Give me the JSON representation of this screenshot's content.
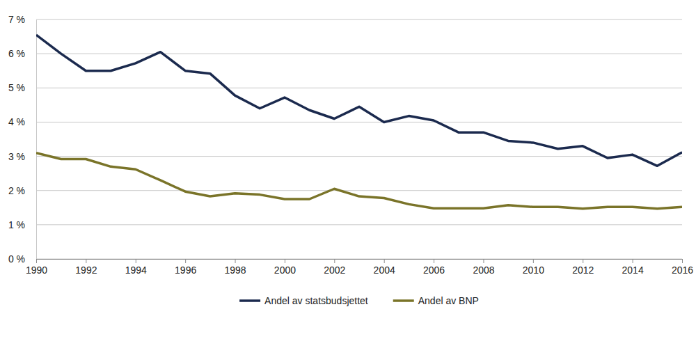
{
  "chart_data": {
    "type": "line",
    "x": [
      1990,
      1991,
      1992,
      1993,
      1994,
      1995,
      1996,
      1997,
      1998,
      1999,
      2000,
      2001,
      2002,
      2003,
      2004,
      2005,
      2006,
      2007,
      2008,
      2009,
      2010,
      2011,
      2012,
      2013,
      2014,
      2015,
      2016
    ],
    "series": [
      {
        "name": "Andel av statsbudsjettet",
        "color": "#1b2a4e",
        "values": [
          6.55,
          6.0,
          5.5,
          5.5,
          5.72,
          6.05,
          5.5,
          5.42,
          4.78,
          4.4,
          4.72,
          4.35,
          4.1,
          4.45,
          4.0,
          4.18,
          4.05,
          3.7,
          3.7,
          3.45,
          3.4,
          3.22,
          3.3,
          2.95,
          3.05,
          2.72,
          3.12
        ]
      },
      {
        "name": "Andel av BNP",
        "color": "#7a7429",
        "values": [
          3.1,
          2.92,
          2.92,
          2.7,
          2.62,
          2.3,
          1.97,
          1.83,
          1.92,
          1.88,
          1.75,
          1.75,
          2.05,
          1.83,
          1.78,
          1.6,
          1.48,
          1.48,
          1.48,
          1.57,
          1.52,
          1.52,
          1.47,
          1.52,
          1.52,
          1.47,
          1.52
        ]
      }
    ],
    "xlim": [
      1990,
      2016
    ],
    "xticks": [
      1990,
      1992,
      1994,
      1996,
      1998,
      2000,
      2002,
      2004,
      2006,
      2008,
      2010,
      2012,
      2014,
      2016
    ],
    "ylim": [
      0,
      7
    ],
    "yticks": [
      {
        "value": 0,
        "label": "0 %"
      },
      {
        "value": 1,
        "label": "1 %"
      },
      {
        "value": 2,
        "label": "2 %"
      },
      {
        "value": 3,
        "label": "3 %"
      },
      {
        "value": 4,
        "label": "4 %"
      },
      {
        "value": 5,
        "label": "5 %"
      },
      {
        "value": 6,
        "label": "6 %"
      },
      {
        "value": 7,
        "label": "7 %"
      }
    ],
    "grid": true,
    "legend": "bottom"
  }
}
